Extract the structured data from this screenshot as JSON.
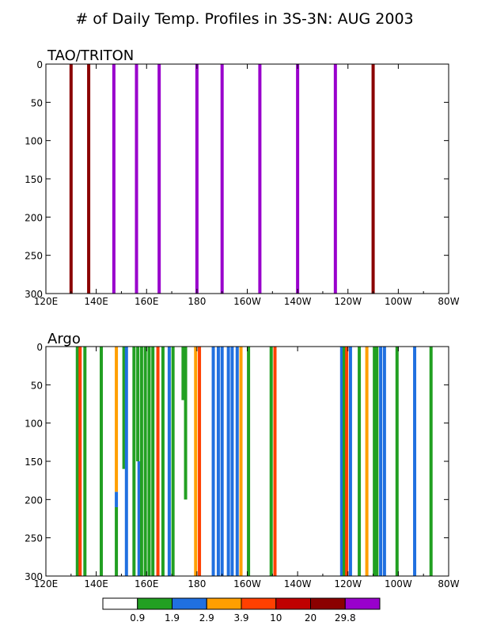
{
  "page_title": "# of Daily Temp. Profiles in 3S-3N: AUG 2003",
  "colorbar": {
    "labels": [
      "0.9",
      "1.9",
      "2.9",
      "3.9",
      "10",
      "20",
      "29.8"
    ],
    "colors": [
      "#ffffff",
      "#22a022",
      "#2070e0",
      "#ff9f00",
      "#ff4000",
      "#c00000",
      "#8b0000",
      "#9900cc"
    ]
  },
  "chart_data": [
    {
      "type": "bar",
      "title": "TAO/TRITON",
      "xlabel": "",
      "ylabel": "",
      "xlim": [
        120,
        280
      ],
      "ylim": [
        0,
        300
      ],
      "x_ticks": [
        120,
        140,
        160,
        180,
        200,
        220,
        240,
        260,
        280
      ],
      "x_tick_labels": [
        "120E",
        "140E",
        "160E",
        "180",
        "160W",
        "140W",
        "120W",
        "100W",
        "80W"
      ],
      "y_ticks": [
        0,
        50,
        100,
        150,
        200,
        250,
        300
      ],
      "y_tick_labels": [
        "0",
        "50",
        "100",
        "150",
        "200",
        "250",
        "300"
      ],
      "y_inverted": true,
      "grid": false,
      "value_note": "bar color = number of daily profiles (see color bar)",
      "columns": [
        {
          "lon": 130,
          "top": 0,
          "bottom": 300,
          "count_class": "20-29.8",
          "color": "#8b0000"
        },
        {
          "lon": 137,
          "top": 0,
          "bottom": 300,
          "count_class": "20-29.8",
          "color": "#8b0000"
        },
        {
          "lon": 147,
          "top": 0,
          "bottom": 300,
          "count_class": ">29.8",
          "color": "#9900cc"
        },
        {
          "lon": 156,
          "top": 0,
          "bottom": 300,
          "count_class": ">29.8",
          "color": "#9900cc"
        },
        {
          "lon": 165,
          "top": 0,
          "bottom": 300,
          "count_class": ">29.8",
          "color": "#9900cc"
        },
        {
          "lon": 180,
          "top": 0,
          "bottom": 300,
          "count_class": ">29.8",
          "color": "#9900cc"
        },
        {
          "lon": 190,
          "top": 0,
          "bottom": 300,
          "count_class": ">29.8",
          "color": "#9900cc"
        },
        {
          "lon": 205,
          "top": 0,
          "bottom": 300,
          "count_class": ">29.8",
          "color": "#9900cc"
        },
        {
          "lon": 220,
          "top": 0,
          "bottom": 300,
          "count_class": ">29.8",
          "color": "#9900cc"
        },
        {
          "lon": 235,
          "top": 0,
          "bottom": 300,
          "count_class": ">29.8",
          "color": "#9900cc"
        },
        {
          "lon": 250,
          "top": 0,
          "bottom": 300,
          "count_class": "20-29.8",
          "color": "#8b0000"
        }
      ]
    },
    {
      "type": "bar",
      "title": "Argo",
      "xlabel": "",
      "ylabel": "",
      "xlim": [
        120,
        280
      ],
      "ylim": [
        0,
        300
      ],
      "x_ticks": [
        120,
        140,
        160,
        180,
        200,
        220,
        240,
        260,
        280
      ],
      "x_tick_labels": [
        "120E",
        "140E",
        "160E",
        "180",
        "160W",
        "140W",
        "120W",
        "100W",
        "80W"
      ],
      "y_ticks": [
        0,
        50,
        100,
        150,
        200,
        250,
        300
      ],
      "y_tick_labels": [
        "0",
        "50",
        "100",
        "150",
        "200",
        "250",
        "300"
      ],
      "y_inverted": true,
      "grid": false,
      "value_note": "bar color = number of daily profiles (see color bar)",
      "columns": [
        {
          "lon": 132.5,
          "top": 0,
          "bottom": 300,
          "color": "#22a022"
        },
        {
          "lon": 133.6,
          "top": 0,
          "bottom": 300,
          "color": "#ff4000"
        },
        {
          "lon": 135.5,
          "top": 0,
          "bottom": 300,
          "color": "#22a022"
        },
        {
          "lon": 142,
          "top": 0,
          "bottom": 300,
          "color": "#22a022"
        },
        {
          "lon": 148,
          "top": 0,
          "bottom": 190,
          "color": "#ff9f00"
        },
        {
          "lon": 148,
          "top": 190,
          "bottom": 210,
          "color": "#2070e0"
        },
        {
          "lon": 148,
          "top": 210,
          "bottom": 300,
          "color": "#22a022"
        },
        {
          "lon": 151,
          "top": 0,
          "bottom": 160,
          "color": "#22a022"
        },
        {
          "lon": 152,
          "top": 0,
          "bottom": 300,
          "color": "#2070e0"
        },
        {
          "lon": 155,
          "top": 0,
          "bottom": 300,
          "color": "#22a022"
        },
        {
          "lon": 156.5,
          "top": 0,
          "bottom": 150,
          "color": "#22a022"
        },
        {
          "lon": 157,
          "top": 150,
          "bottom": 300,
          "color": "#2070e0"
        },
        {
          "lon": 158,
          "top": 0,
          "bottom": 300,
          "color": "#22a022"
        },
        {
          "lon": 159.5,
          "top": 0,
          "bottom": 300,
          "color": "#22a022"
        },
        {
          "lon": 161,
          "top": 0,
          "bottom": 300,
          "color": "#22a022"
        },
        {
          "lon": 162.5,
          "top": 0,
          "bottom": 300,
          "color": "#22a022"
        },
        {
          "lon": 164.5,
          "top": 0,
          "bottom": 300,
          "color": "#ff4000"
        },
        {
          "lon": 166.5,
          "top": 0,
          "bottom": 300,
          "color": "#22a022"
        },
        {
          "lon": 169,
          "top": 0,
          "bottom": 300,
          "color": "#2070e0"
        },
        {
          "lon": 170.5,
          "top": 0,
          "bottom": 300,
          "color": "#22a022"
        },
        {
          "lon": 174.5,
          "top": 0,
          "bottom": 70,
          "color": "#22a022"
        },
        {
          "lon": 175.5,
          "top": 0,
          "bottom": 200,
          "color": "#22a022"
        },
        {
          "lon": 179.5,
          "top": 0,
          "bottom": 300,
          "color": "#ff9f00"
        },
        {
          "lon": 181,
          "top": 0,
          "bottom": 300,
          "color": "#ff4000"
        },
        {
          "lon": 186.5,
          "top": 0,
          "bottom": 300,
          "color": "#2070e0"
        },
        {
          "lon": 188.5,
          "top": 0,
          "bottom": 300,
          "color": "#2070e0"
        },
        {
          "lon": 190,
          "top": 0,
          "bottom": 300,
          "color": "#2070e0"
        },
        {
          "lon": 192.5,
          "top": 0,
          "bottom": 300,
          "color": "#2070e0"
        },
        {
          "lon": 194,
          "top": 0,
          "bottom": 300,
          "color": "#2070e0"
        },
        {
          "lon": 196,
          "top": 0,
          "bottom": 300,
          "color": "#2070e0"
        },
        {
          "lon": 197.5,
          "top": 0,
          "bottom": 300,
          "color": "#ff9f00"
        },
        {
          "lon": 200.5,
          "top": 0,
          "bottom": 300,
          "color": "#22a022"
        },
        {
          "lon": 209.5,
          "top": 0,
          "bottom": 300,
          "color": "#22a022"
        },
        {
          "lon": 211,
          "top": 0,
          "bottom": 300,
          "color": "#ff4000"
        },
        {
          "lon": 237.5,
          "top": 0,
          "bottom": 300,
          "color": "#2070e0"
        },
        {
          "lon": 238.5,
          "top": 0,
          "bottom": 300,
          "color": "#22a022"
        },
        {
          "lon": 239.5,
          "top": 0,
          "bottom": 300,
          "color": "#ff4000"
        },
        {
          "lon": 241,
          "top": 0,
          "bottom": 300,
          "color": "#2070e0"
        },
        {
          "lon": 244.5,
          "top": 0,
          "bottom": 300,
          "color": "#22a022"
        },
        {
          "lon": 247.5,
          "top": 0,
          "bottom": 300,
          "color": "#ff9f00"
        },
        {
          "lon": 250.5,
          "top": 0,
          "bottom": 300,
          "color": "#22a022"
        },
        {
          "lon": 251.5,
          "top": 0,
          "bottom": 300,
          "color": "#22a022"
        },
        {
          "lon": 253,
          "top": 0,
          "bottom": 300,
          "color": "#2070e0"
        },
        {
          "lon": 254.5,
          "top": 0,
          "bottom": 300,
          "color": "#2070e0"
        },
        {
          "lon": 259.5,
          "top": 0,
          "bottom": 300,
          "color": "#22a022"
        },
        {
          "lon": 266.5,
          "top": 0,
          "bottom": 300,
          "color": "#2070e0"
        },
        {
          "lon": 273,
          "top": 0,
          "bottom": 300,
          "color": "#22a022"
        }
      ]
    }
  ]
}
